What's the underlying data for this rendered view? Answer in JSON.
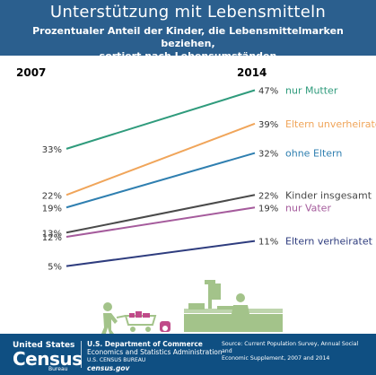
{
  "header": {
    "title": "Unterstützung mit Lebensmitteln",
    "subtitle_line1": "Prozentualer Anteil der Kinder, die Lebensmittelmarken beziehen,",
    "subtitle_line2": "sortiert nach Lebensumständen"
  },
  "chart_data": {
    "type": "line",
    "x": [
      "2007",
      "2014"
    ],
    "y_unit": "%",
    "series": [
      {
        "name": "nur Mutter",
        "values": [
          33,
          47
        ],
        "color": "#2f9b7c"
      },
      {
        "name": "Eltern unverheiratet",
        "values": [
          22,
          39
        ],
        "color": "#f0a55a"
      },
      {
        "name": "ohne Eltern",
        "values": [
          19,
          32
        ],
        "color": "#2f7fb0"
      },
      {
        "name": "Kinder insgesamt",
        "values": [
          13,
          22
        ],
        "color": "#4a4a4a"
      },
      {
        "name": "nur Vater",
        "values": [
          12,
          19
        ],
        "color": "#a55b9c"
      },
      {
        "name": "Eltern verheiratet",
        "values": [
          5,
          11
        ],
        "color": "#2e3c7e"
      }
    ],
    "start_labels": [
      "33%",
      "22%",
      "19%",
      "13%",
      "12%",
      "5%"
    ],
    "end_labels": [
      "47%",
      "39%",
      "32%",
      "22%",
      "19%",
      "11%"
    ],
    "grid": false,
    "legend": "direct labels at line ends"
  },
  "illustration": {
    "left": "person-pushing-cart-icon",
    "right": "cashier-at-checkout-icon",
    "color": "#a3c38a"
  },
  "footer": {
    "logo_top": "United States",
    "logo_main": "Census",
    "logo_sub": "Bureau",
    "org_line1": "U.S. Department of Commerce",
    "org_line2": "Economics and Statistics Administration",
    "org_line3": "U.S. CENSUS BUREAU",
    "org_line4": "census.gov",
    "source_line1": "Source: Current Population Survey, Annual Social and",
    "source_line2": "Economic Supplement, 2007 and 2014"
  },
  "colors": {
    "header_bg": "#2b5f8e",
    "footer_bg": "#0f4f82"
  }
}
